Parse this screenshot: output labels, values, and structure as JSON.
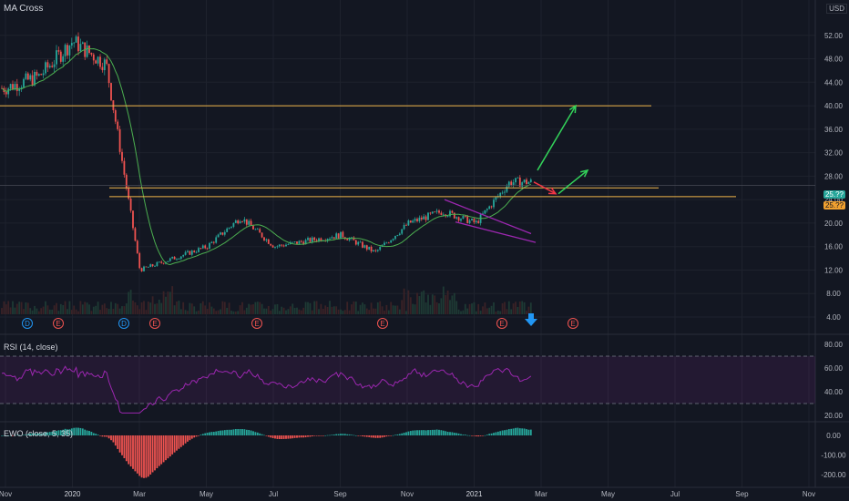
{
  "chart_title": "MA Cross",
  "currency": "USD",
  "rsi_title": "RSI (14, close)",
  "ewo_title": "EWO (close, 5, 35)",
  "colors": {
    "background": "#131722",
    "grid": "#1e222d",
    "up": "#26a69a",
    "down": "#ef5350",
    "ma": "#4caf50",
    "level": "#f0b64a",
    "wedge": "#9c27b0",
    "rsi": "#9c27b0",
    "arrow_up": "#33d35a",
    "arrow_down": "#f23645",
    "event_arrow": "#2196f3",
    "price_tag_green": "#26a69a",
    "price_tag_orange": "#f0a030"
  },
  "price_tags": [
    "25.??",
    "25.??"
  ],
  "chart_data": [
    {
      "type": "candlestick",
      "title": "",
      "x_axis_ticks": [
        "Nov",
        "2020",
        "Mar",
        "May",
        "Jul",
        "Sep",
        "Nov",
        "2021",
        "Mar",
        "May",
        "Jul",
        "Sep",
        "Nov"
      ],
      "y_axis_ticks": [
        "4.00",
        "8.00",
        "12.00",
        "16.00",
        "20.00",
        "24.00",
        "28.00",
        "32.00",
        "36.00",
        "40.00",
        "44.00",
        "48.00",
        "52.00"
      ],
      "ylim": [
        4,
        56
      ],
      "approx_close_path": [
        {
          "date": "2019-11",
          "close": 43
        },
        {
          "date": "2019-12",
          "close": 45
        },
        {
          "date": "2020-01",
          "close": 51
        },
        {
          "date": "2020-02",
          "close": 47
        },
        {
          "date": "2020-03",
          "close": 12
        },
        {
          "date": "2020-04",
          "close": 14
        },
        {
          "date": "2020-05",
          "close": 16
        },
        {
          "date": "2020-06",
          "close": 21
        },
        {
          "date": "2020-07",
          "close": 16
        },
        {
          "date": "2020-08",
          "close": 17
        },
        {
          "date": "2020-09",
          "close": 18
        },
        {
          "date": "2020-10",
          "close": 15
        },
        {
          "date": "2020-11",
          "close": 20
        },
        {
          "date": "2020-12",
          "close": 22
        },
        {
          "date": "2021-01",
          "close": 20
        },
        {
          "date": "2021-02",
          "close": 27
        }
      ],
      "horizontal_levels": [
        40,
        26,
        24.5
      ],
      "projection_arrows": [
        "up to 40",
        "up to 29",
        "down to 24.5"
      ],
      "event_markers": [
        "D",
        "E",
        "D",
        "E",
        "E",
        "E",
        "E",
        "E"
      ]
    },
    {
      "type": "line",
      "title": "RSI (14, close)",
      "y_axis_ticks": [
        "20.00",
        "40.00",
        "60.00",
        "80.00"
      ],
      "ylim": [
        20,
        80
      ],
      "bands": [
        30,
        70
      ]
    },
    {
      "type": "bar",
      "title": "EWO (close, 5, 35)",
      "y_axis_ticks": [
        "0.00",
        "-100.00",
        "-200.00"
      ],
      "ylim": [
        -210,
        20
      ]
    }
  ]
}
